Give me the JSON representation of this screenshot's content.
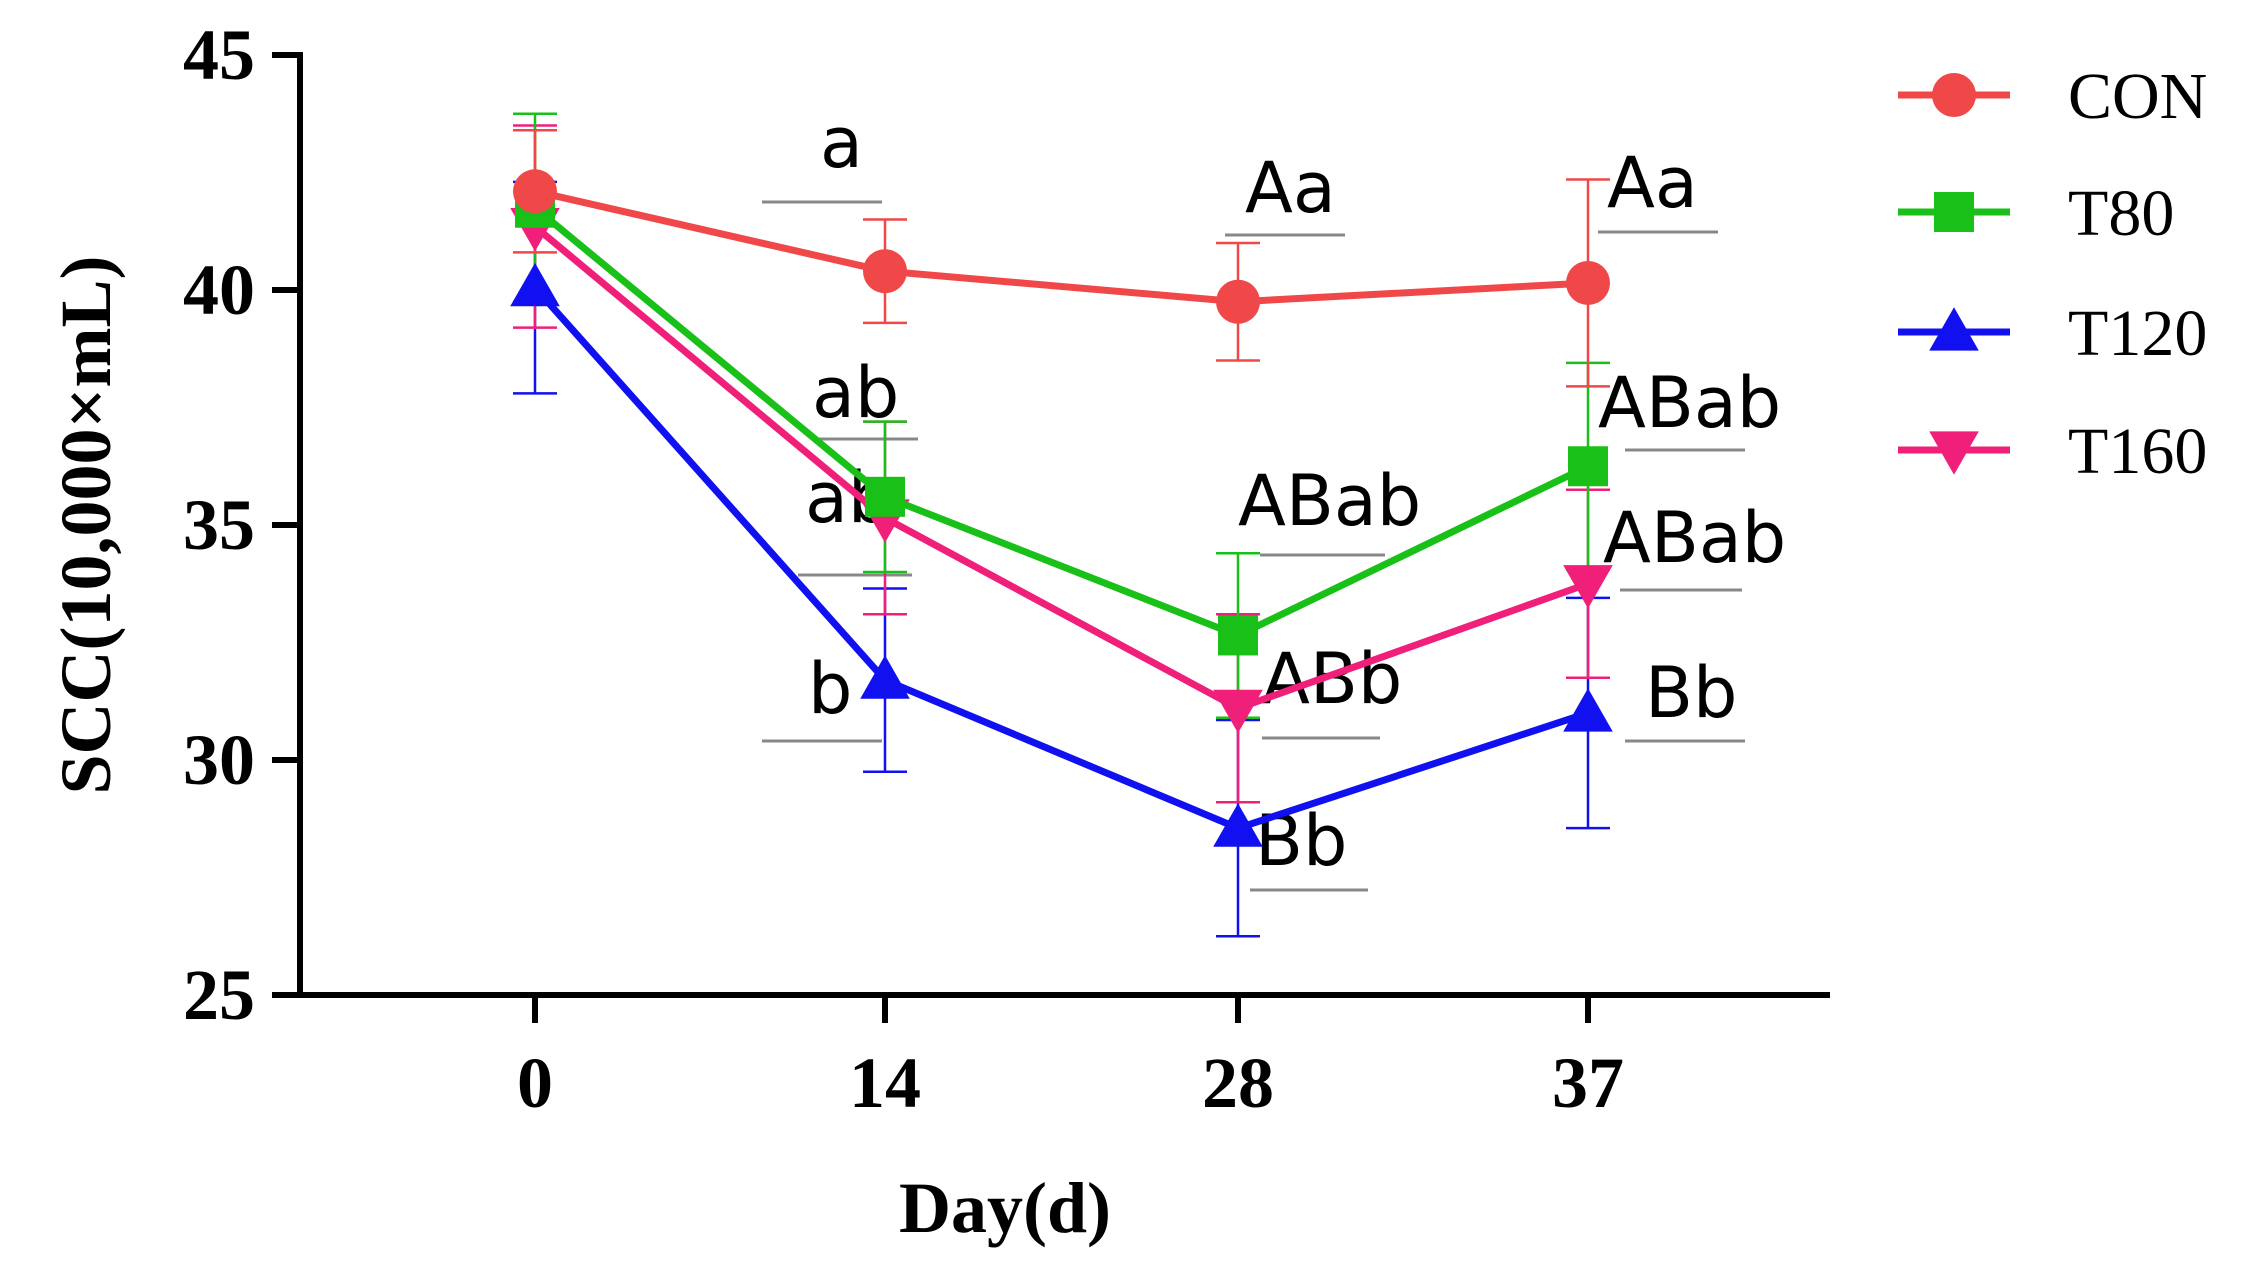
{
  "chart_data": {
    "type": "line",
    "title": "",
    "xlabel": "Day(d)",
    "ylabel": "SCC(10,000×mL)",
    "categories": [
      "0",
      "14",
      "28",
      "37"
    ],
    "x": [
      0,
      14,
      28,
      37
    ],
    "ylim": [
      25,
      45
    ],
    "yticks": [
      25,
      30,
      35,
      40,
      45
    ],
    "legend_position": "right",
    "grid": false,
    "series": [
      {
        "name": "CON",
        "color": "#f04848",
        "marker": "circle",
        "values": [
          42.1,
          40.4,
          39.75,
          40.15
        ],
        "errors": [
          1.3,
          1.1,
          1.25,
          2.2
        ]
      },
      {
        "name": "T80",
        "color": "#18c018",
        "marker": "square",
        "values": [
          41.75,
          35.6,
          32.65,
          36.25
        ],
        "errors": [
          2.0,
          1.6,
          1.75,
          2.2
        ]
      },
      {
        "name": "T120",
        "color": "#1010f0",
        "marker": "triangle-up",
        "values": [
          40.05,
          31.7,
          28.55,
          31.0
        ],
        "errors": [
          2.25,
          1.95,
          2.3,
          2.45
        ]
      },
      {
        "name": "T160",
        "color": "#f0207a",
        "marker": "triangle-down",
        "values": [
          41.35,
          35.15,
          31.1,
          33.75
        ],
        "errors": [
          2.15,
          2.05,
          2.0,
          2.0
        ]
      }
    ],
    "annotations": [
      {
        "category": "14",
        "series": "CON",
        "text": "a"
      },
      {
        "category": "14",
        "series": "T80",
        "text": "ab"
      },
      {
        "category": "14",
        "series": "T160",
        "text": "ab"
      },
      {
        "category": "14",
        "series": "T120",
        "text": "b"
      },
      {
        "category": "28",
        "series": "CON",
        "text": "Aa"
      },
      {
        "category": "28",
        "series": "T80",
        "text": "ABab"
      },
      {
        "category": "28",
        "series": "T160",
        "text": "ABb"
      },
      {
        "category": "28",
        "series": "T120",
        "text": "Bb"
      },
      {
        "category": "37",
        "series": "CON",
        "text": "Aa"
      },
      {
        "category": "37",
        "series": "T80",
        "text": "ABab"
      },
      {
        "category": "37",
        "series": "T160",
        "text": "ABab"
      },
      {
        "category": "37",
        "series": "T120",
        "text": "Bb"
      }
    ]
  }
}
